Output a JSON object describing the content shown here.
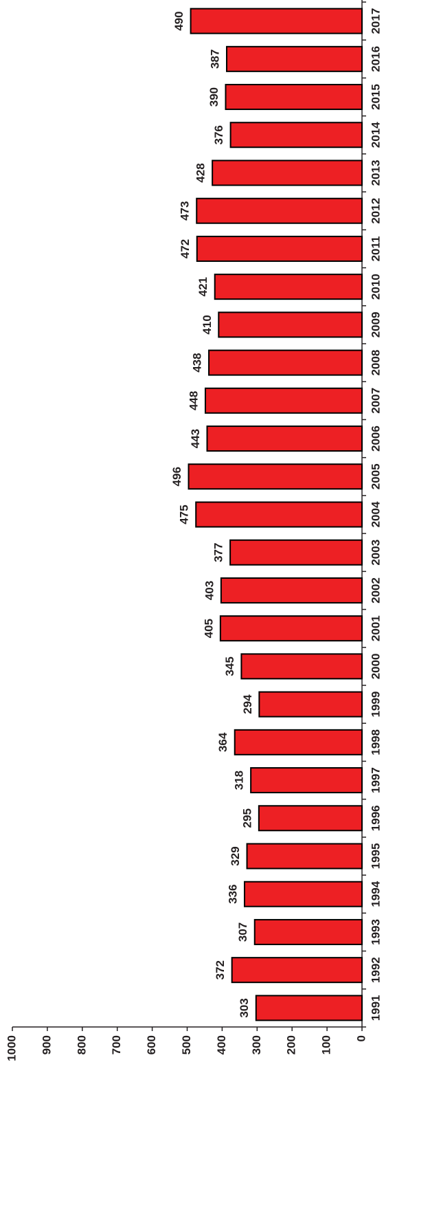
{
  "chart_data": {
    "type": "bar",
    "orientation": "rotated",
    "categories": [
      "1991",
      "1992",
      "1993",
      "1994",
      "1995",
      "1996",
      "1997",
      "1998",
      "1999",
      "2000",
      "2001",
      "2002",
      "2003",
      "2004",
      "2005",
      "2006",
      "2007",
      "2008",
      "2009",
      "2010",
      "2011",
      "2012",
      "2013",
      "2014",
      "2015",
      "2016",
      "2017"
    ],
    "values": [
      303,
      372,
      307,
      336,
      329,
      295,
      318,
      364,
      294,
      345,
      405,
      403,
      377,
      475,
      496,
      443,
      448,
      438,
      410,
      421,
      472,
      473,
      428,
      376,
      390,
      387,
      490
    ],
    "color": "#ed2024",
    "ylim": [
      0,
      1000
    ],
    "yticks": [
      0,
      100,
      200,
      300,
      400,
      500,
      600,
      700,
      800,
      900,
      1000
    ],
    "grid": false
  }
}
